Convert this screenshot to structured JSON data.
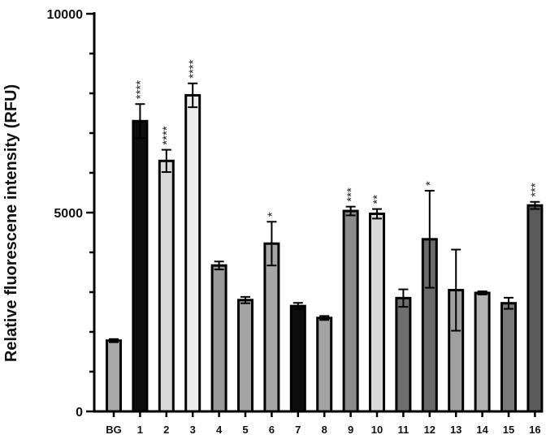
{
  "chart_data": {
    "type": "bar",
    "ylabel": "Relative fluorescene intensity  (RFU)",
    "ylim": [
      0,
      10000
    ],
    "yticks": [
      0,
      5000,
      10000
    ],
    "ytick_labels": [
      "0",
      "5000",
      "10000"
    ],
    "categories": [
      "BG",
      "1",
      "2",
      "3",
      "4",
      "5",
      "6",
      "7",
      "8",
      "9",
      "10",
      "11",
      "12",
      "13",
      "14",
      "15",
      "16"
    ],
    "values": [
      1780,
      7300,
      6300,
      7950,
      3670,
      2800,
      4220,
      2650,
      2350,
      5040,
      4970,
      2850,
      4330,
      3050,
      2980,
      2720,
      5180
    ],
    "errors": [
      40,
      430,
      280,
      300,
      100,
      80,
      550,
      80,
      50,
      110,
      120,
      220,
      1220,
      1020,
      40,
      140,
      90
    ],
    "significance": [
      "",
      "****",
      "****",
      "****",
      "",
      "",
      "*",
      "",
      "",
      "***",
      "**",
      "",
      "*",
      "",
      "",
      "",
      "***"
    ],
    "bar_colors": [
      "#a9a9a9",
      "#0d0d0d",
      "#d9d9d9",
      "#ececec",
      "#9a9a9a",
      "#a3a3a3",
      "#a6a6a6",
      "#0d0d0d",
      "#a3a3a3",
      "#8c8c8c",
      "#d9d9d9",
      "#6e6e6e",
      "#6a6a6a",
      "#a0a0a0",
      "#b4b4b4",
      "#7a7a7a",
      "#5a5a5a"
    ],
    "grid": false,
    "legend": "none"
  }
}
